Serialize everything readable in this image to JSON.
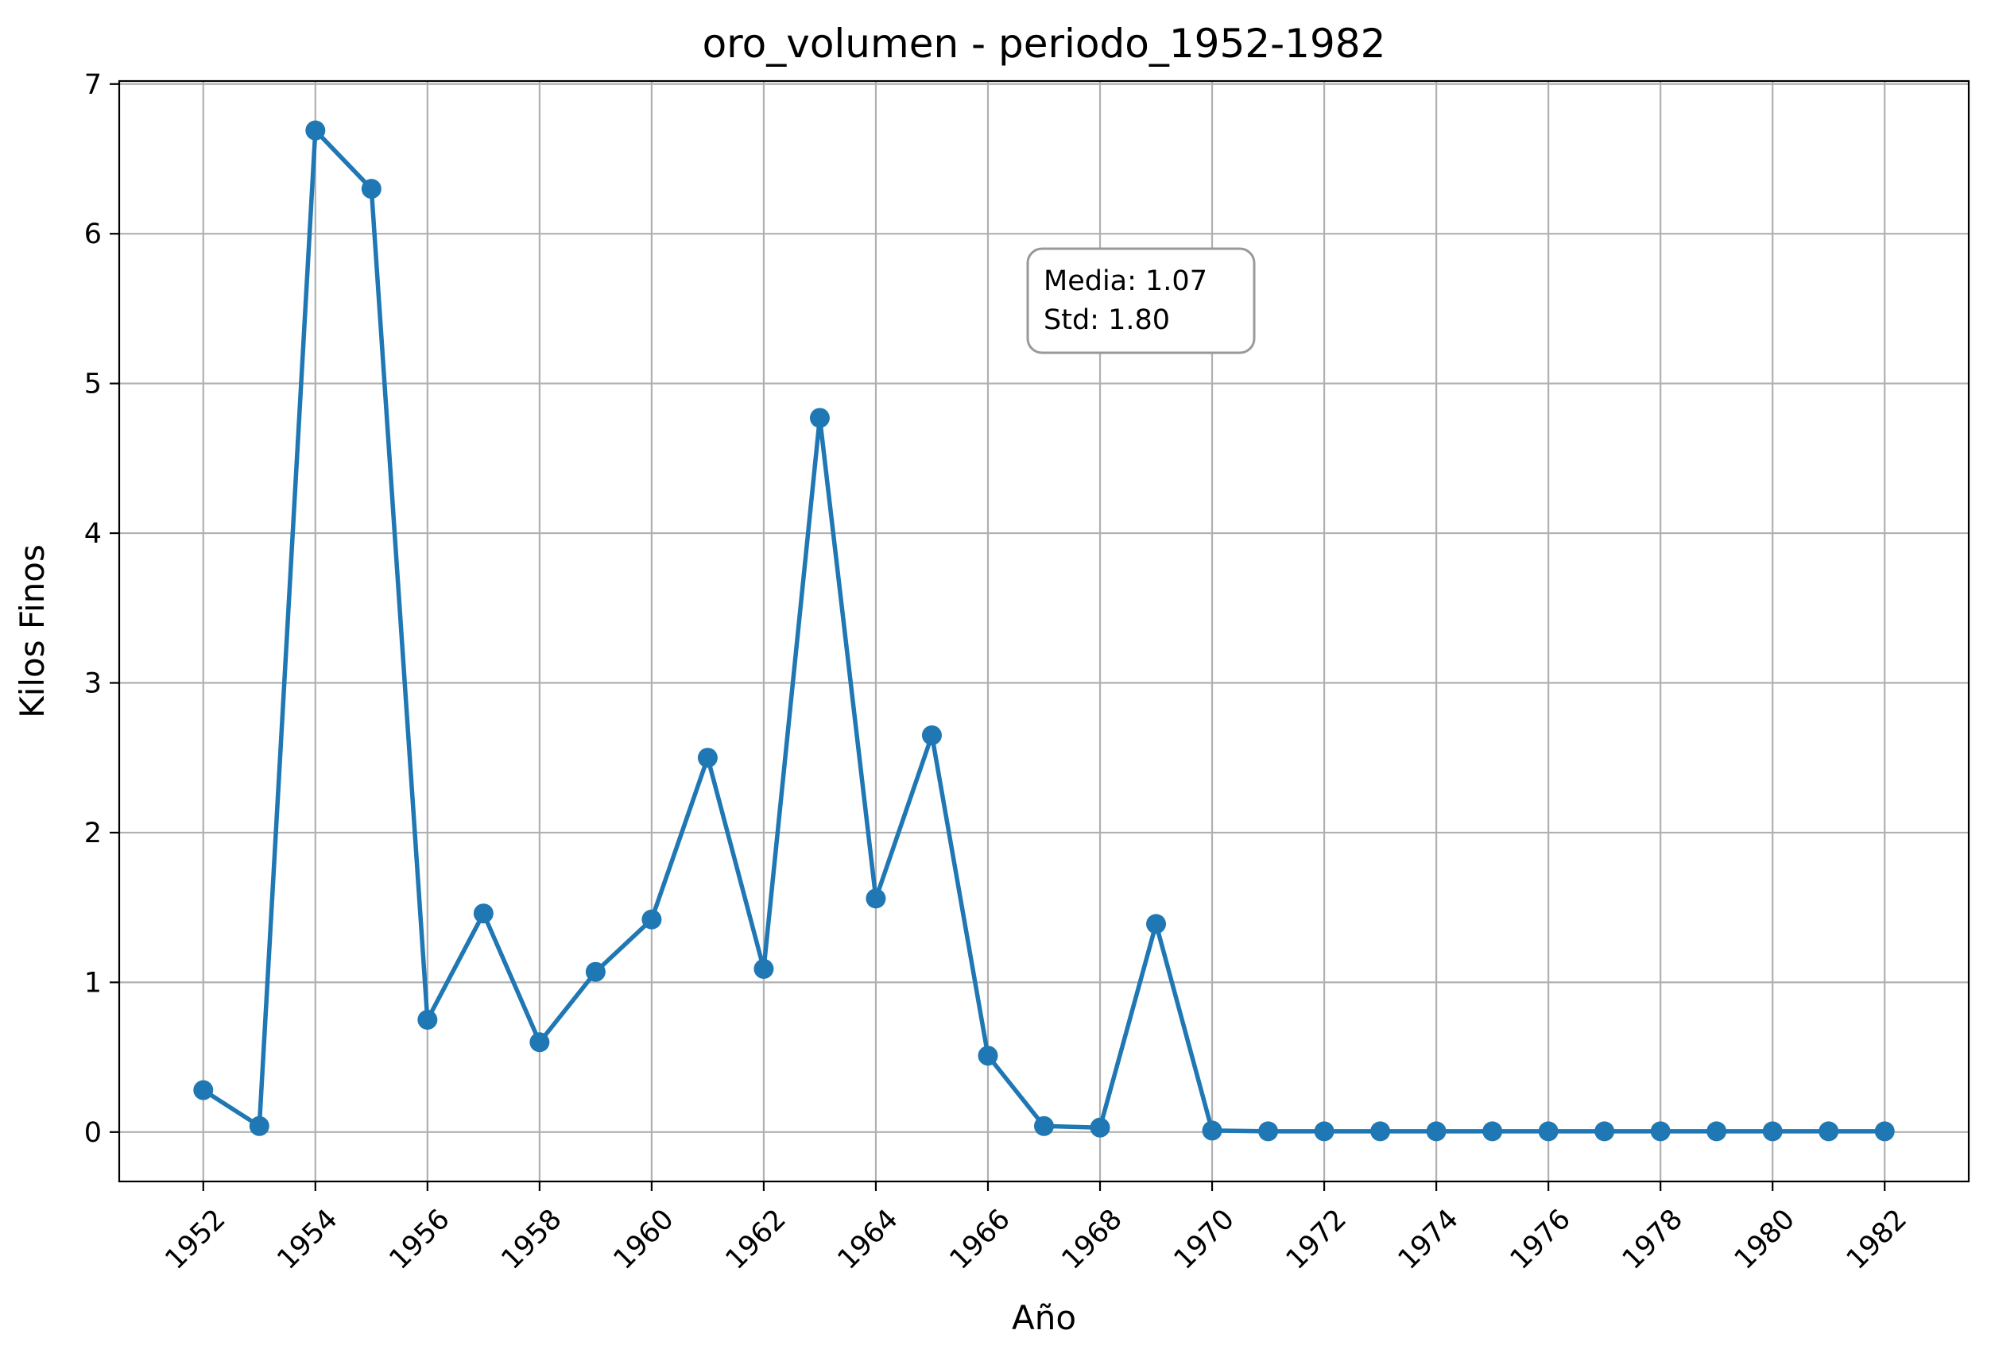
{
  "chart_data": {
    "type": "line",
    "title": "oro_volumen - periodo_1952-1982",
    "xlabel": "Año",
    "ylabel": "Kilos Finos",
    "xlim": [
      1950.5,
      1983.5
    ],
    "ylim": [
      -0.33,
      7.02
    ],
    "xticks": [
      1952,
      1954,
      1956,
      1958,
      1960,
      1962,
      1964,
      1966,
      1968,
      1970,
      1972,
      1974,
      1976,
      1978,
      1980,
      1982
    ],
    "yticks": [
      0,
      1,
      2,
      3,
      4,
      5,
      6,
      7
    ],
    "grid": true,
    "series": [
      {
        "color": "#1f77b4",
        "marker": "circle",
        "x": [
          1952,
          1953,
          1954,
          1955,
          1956,
          1957,
          1958,
          1959,
          1960,
          1961,
          1962,
          1963,
          1964,
          1965,
          1966,
          1967,
          1968,
          1969,
          1970,
          1971,
          1972,
          1973,
          1974,
          1975,
          1976,
          1977,
          1978,
          1979,
          1980,
          1981,
          1982
        ],
        "y": [
          0.28,
          0.04,
          6.69,
          6.3,
          0.75,
          1.46,
          0.6,
          1.07,
          1.42,
          2.5,
          1.09,
          4.77,
          1.56,
          2.65,
          0.51,
          0.04,
          0.03,
          1.39,
          0.01,
          0.005,
          0.005,
          0.005,
          0.005,
          0.005,
          0.005,
          0.005,
          0.005,
          0.005,
          0.005,
          0.005,
          0.005
        ]
      }
    ],
    "annotation": {
      "lines": [
        "Media: 1.07",
        "Std: 1.80"
      ]
    }
  }
}
